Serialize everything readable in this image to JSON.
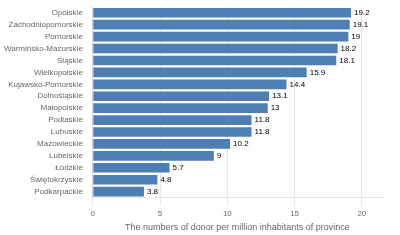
{
  "chart_data": {
    "type": "bar",
    "orientation": "horizontal",
    "categories": [
      "Podkarpackie",
      "Świętokrzyskie",
      "Łódzkie",
      "Lubelskie",
      "Mazowieckie",
      "Lubuskie",
      "Podlaskie",
      "Małopolskie",
      "Dolnośląskie",
      "Kujawsko-Pomorskie",
      "Wielkopolskie",
      "Śląskie",
      "Warmińsko-Mazurskie",
      "Pomorskie",
      "Zachodniopomorskie",
      "Opolskie"
    ],
    "values": [
      3.8,
      4.8,
      5.7,
      9,
      10.2,
      11.8,
      11.8,
      13,
      13.1,
      14.4,
      15.9,
      18.1,
      18.2,
      19,
      19.1,
      19.2
    ],
    "color": "#4d7eb5",
    "xlabel": "The numbers of donor per million inhabitants of province",
    "xlim": [
      0,
      21.5
    ],
    "xticks": [
      0,
      5,
      10,
      15,
      20
    ],
    "grid": true,
    "data_labels": true
  }
}
